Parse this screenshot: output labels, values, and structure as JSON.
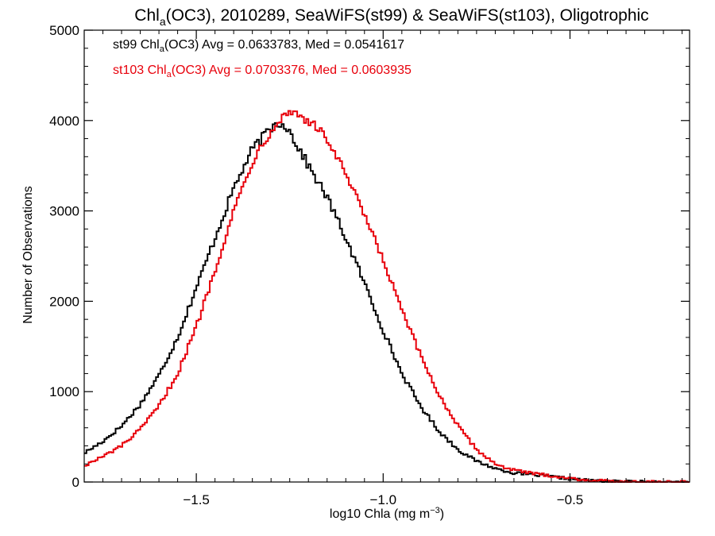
{
  "chart_data": {
    "type": "line",
    "title_parts": {
      "pre": "Chl",
      "sub": "a",
      "post": "(OC3), 2010289, SeaWiFS(st99) & SeaWiFS(st103), Oligotrophic"
    },
    "xlabel_parts": {
      "pre": "log10 Chla (mg m",
      "sup": "−3",
      "post": ")"
    },
    "ylabel": "Number of Observations",
    "xlim": [
      -1.8,
      -0.18
    ],
    "ylim": [
      0,
      5000
    ],
    "x_ticks": [
      -1.5,
      -1.0,
      -0.5
    ],
    "x_tick_labels": [
      "−1.5",
      "−1.0",
      "−0.5"
    ],
    "y_ticks": [
      0,
      1000,
      2000,
      3000,
      4000,
      5000
    ],
    "y_tick_labels": [
      "0",
      "1000",
      "2000",
      "3000",
      "4000",
      "5000"
    ],
    "grid": false,
    "legend_position": "top-left",
    "series": [
      {
        "name": "st99",
        "color": "#000000",
        "legend_parts": {
          "pre": "st99 Chl",
          "sub": "a",
          "post": "(OC3) Avg = 0.0633783, Med = 0.0541617"
        },
        "x": [
          -1.8,
          -1.75,
          -1.7,
          -1.65,
          -1.6,
          -1.55,
          -1.5,
          -1.45,
          -1.4,
          -1.35,
          -1.3,
          -1.28,
          -1.26,
          -1.24,
          -1.22,
          -1.2,
          -1.15,
          -1.1,
          -1.05,
          -1.0,
          -0.95,
          -0.9,
          -0.85,
          -0.8,
          -0.75,
          -0.7,
          -0.65,
          -0.6,
          -0.55,
          -0.5,
          -0.45,
          -0.4,
          -0.3,
          -0.18
        ],
        "y": [
          320,
          450,
          620,
          860,
          1180,
          1600,
          2150,
          2700,
          3250,
          3680,
          3920,
          3980,
          3950,
          3800,
          3650,
          3500,
          3150,
          2700,
          2200,
          1680,
          1200,
          840,
          560,
          360,
          230,
          150,
          100,
          80,
          60,
          35,
          18,
          8,
          3,
          0
        ]
      },
      {
        "name": "st103",
        "color": "#e8000b",
        "legend_parts": {
          "pre": "st103 Chl",
          "sub": "a",
          "post": "(OC3) Avg = 0.0703376, Med = 0.0603935"
        },
        "x": [
          -1.8,
          -1.75,
          -1.7,
          -1.65,
          -1.6,
          -1.55,
          -1.5,
          -1.45,
          -1.4,
          -1.35,
          -1.3,
          -1.28,
          -1.26,
          -1.24,
          -1.22,
          -1.2,
          -1.15,
          -1.1,
          -1.05,
          -1.0,
          -0.95,
          -0.9,
          -0.85,
          -0.8,
          -0.75,
          -0.7,
          -0.65,
          -0.6,
          -0.55,
          -0.5,
          -0.45,
          -0.4,
          -0.3,
          -0.18
        ],
        "y": [
          180,
          280,
          400,
          580,
          840,
          1200,
          1720,
          2350,
          3000,
          3550,
          3900,
          4000,
          4080,
          4100,
          4050,
          4000,
          3800,
          3400,
          2950,
          2450,
          1900,
          1400,
          960,
          620,
          360,
          200,
          130,
          95,
          70,
          40,
          20,
          10,
          4,
          0
        ]
      }
    ]
  }
}
